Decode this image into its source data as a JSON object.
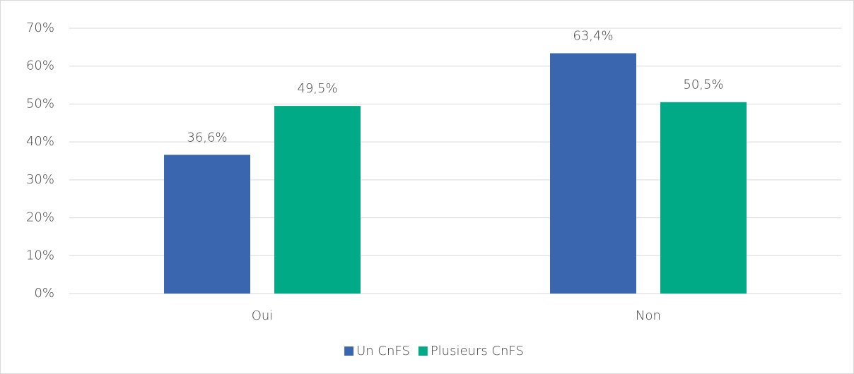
{
  "chart_data": {
    "type": "bar",
    "categories": [
      "Oui",
      "Non"
    ],
    "series": [
      {
        "name": "Un CnFS",
        "color": "#3a66b0",
        "values": [
          36.6,
          63.4
        ],
        "value_labels": [
          "36,6%",
          "63,4%"
        ]
      },
      {
        "name": "Plusieurs CnFS",
        "color": "#00aa87",
        "values": [
          49.5,
          50.5
        ],
        "value_labels": [
          "49,5%",
          "50,5%"
        ]
      }
    ],
    "ylim": [
      0,
      70
    ],
    "yticks": [
      {
        "value": 0,
        "label": "0%"
      },
      {
        "value": 10,
        "label": "10%"
      },
      {
        "value": 20,
        "label": "20%"
      },
      {
        "value": 30,
        "label": "30%"
      },
      {
        "value": 40,
        "label": "40%"
      },
      {
        "value": 50,
        "label": "50%"
      },
      {
        "value": 60,
        "label": "60%"
      },
      {
        "value": 70,
        "label": "70%"
      }
    ],
    "grid": true,
    "legend": "bottom"
  }
}
